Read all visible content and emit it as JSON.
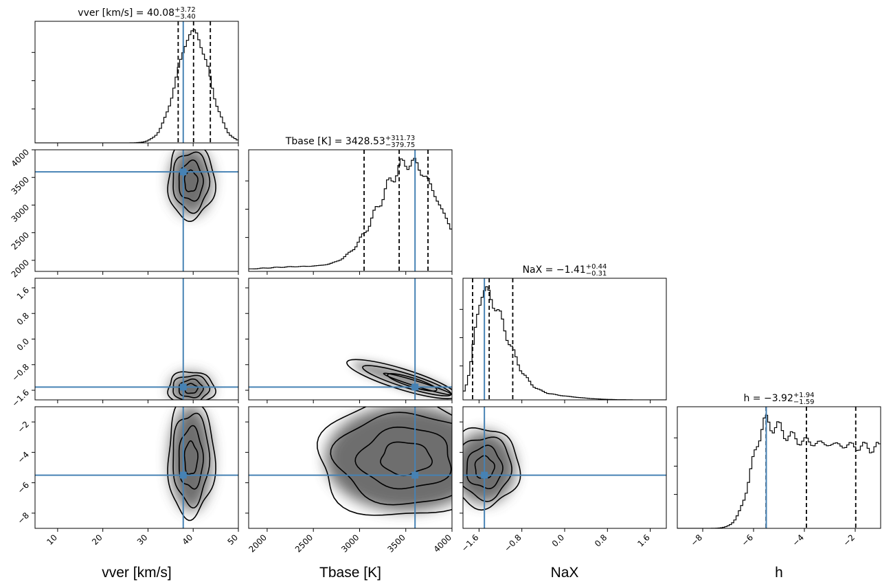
{
  "chart_data": {
    "type": "corner",
    "parameters": [
      {
        "key": "vver",
        "axis_label": "vver [km/s]",
        "title_prefix": "vver [km/s] = ",
        "median": "40.08",
        "err_plus": "+3.72",
        "err_minus": "−3.40",
        "range": [
          5,
          50
        ],
        "ticks": [
          10,
          20,
          30,
          40,
          50
        ],
        "tick_labels": [
          "10",
          "20",
          "30",
          "40",
          "50"
        ],
        "quantiles": [
          36.68,
          40.08,
          43.8
        ],
        "truth": 37.8,
        "peak": 40,
        "width": 3.6
      },
      {
        "key": "Tbase",
        "axis_label": "Tbase [K]",
        "title_prefix": "Tbase [K] = ",
        "median": "3428.53",
        "err_plus": "+311.73",
        "err_minus": "−379.75",
        "range": [
          1800,
          4000
        ],
        "ticks": [
          2000,
          2500,
          3000,
          3500,
          4000
        ],
        "tick_labels": [
          "2000",
          "2500",
          "3000",
          "3500",
          "4000"
        ],
        "quantiles": [
          3048.78,
          3428.53,
          3740.26
        ],
        "truth": 3600
      },
      {
        "key": "NaX",
        "axis_label": "NaX",
        "title_prefix": "NaX = ",
        "median": "−1.41",
        "err_plus": "+0.44",
        "err_minus": "−0.31",
        "range": [
          -1.9,
          1.9
        ],
        "ticks": [
          -1.6,
          -0.8,
          0.0,
          0.8,
          1.6
        ],
        "tick_labels": [
          "−1.6",
          "−0.8",
          "0.0",
          "0.8",
          "1.6"
        ],
        "quantiles": [
          -1.72,
          -1.41,
          -0.97
        ],
        "truth": -1.5
      },
      {
        "key": "h",
        "axis_label": "h",
        "title_prefix": "h = ",
        "median": "−3.92",
        "err_plus": "+1.94",
        "err_minus": "−1.59",
        "range": [
          -9.0,
          -1.0
        ],
        "ticks": [
          -8,
          -6,
          -4,
          -2
        ],
        "tick_labels": [
          "−8",
          "−6",
          "−4",
          "−2"
        ],
        "quantiles": [
          -5.51,
          -3.92,
          -1.98
        ],
        "truth": -5.5
      }
    ],
    "colors": {
      "truth": "#4682b4",
      "line": "#000000",
      "quantile": "#000000"
    }
  }
}
